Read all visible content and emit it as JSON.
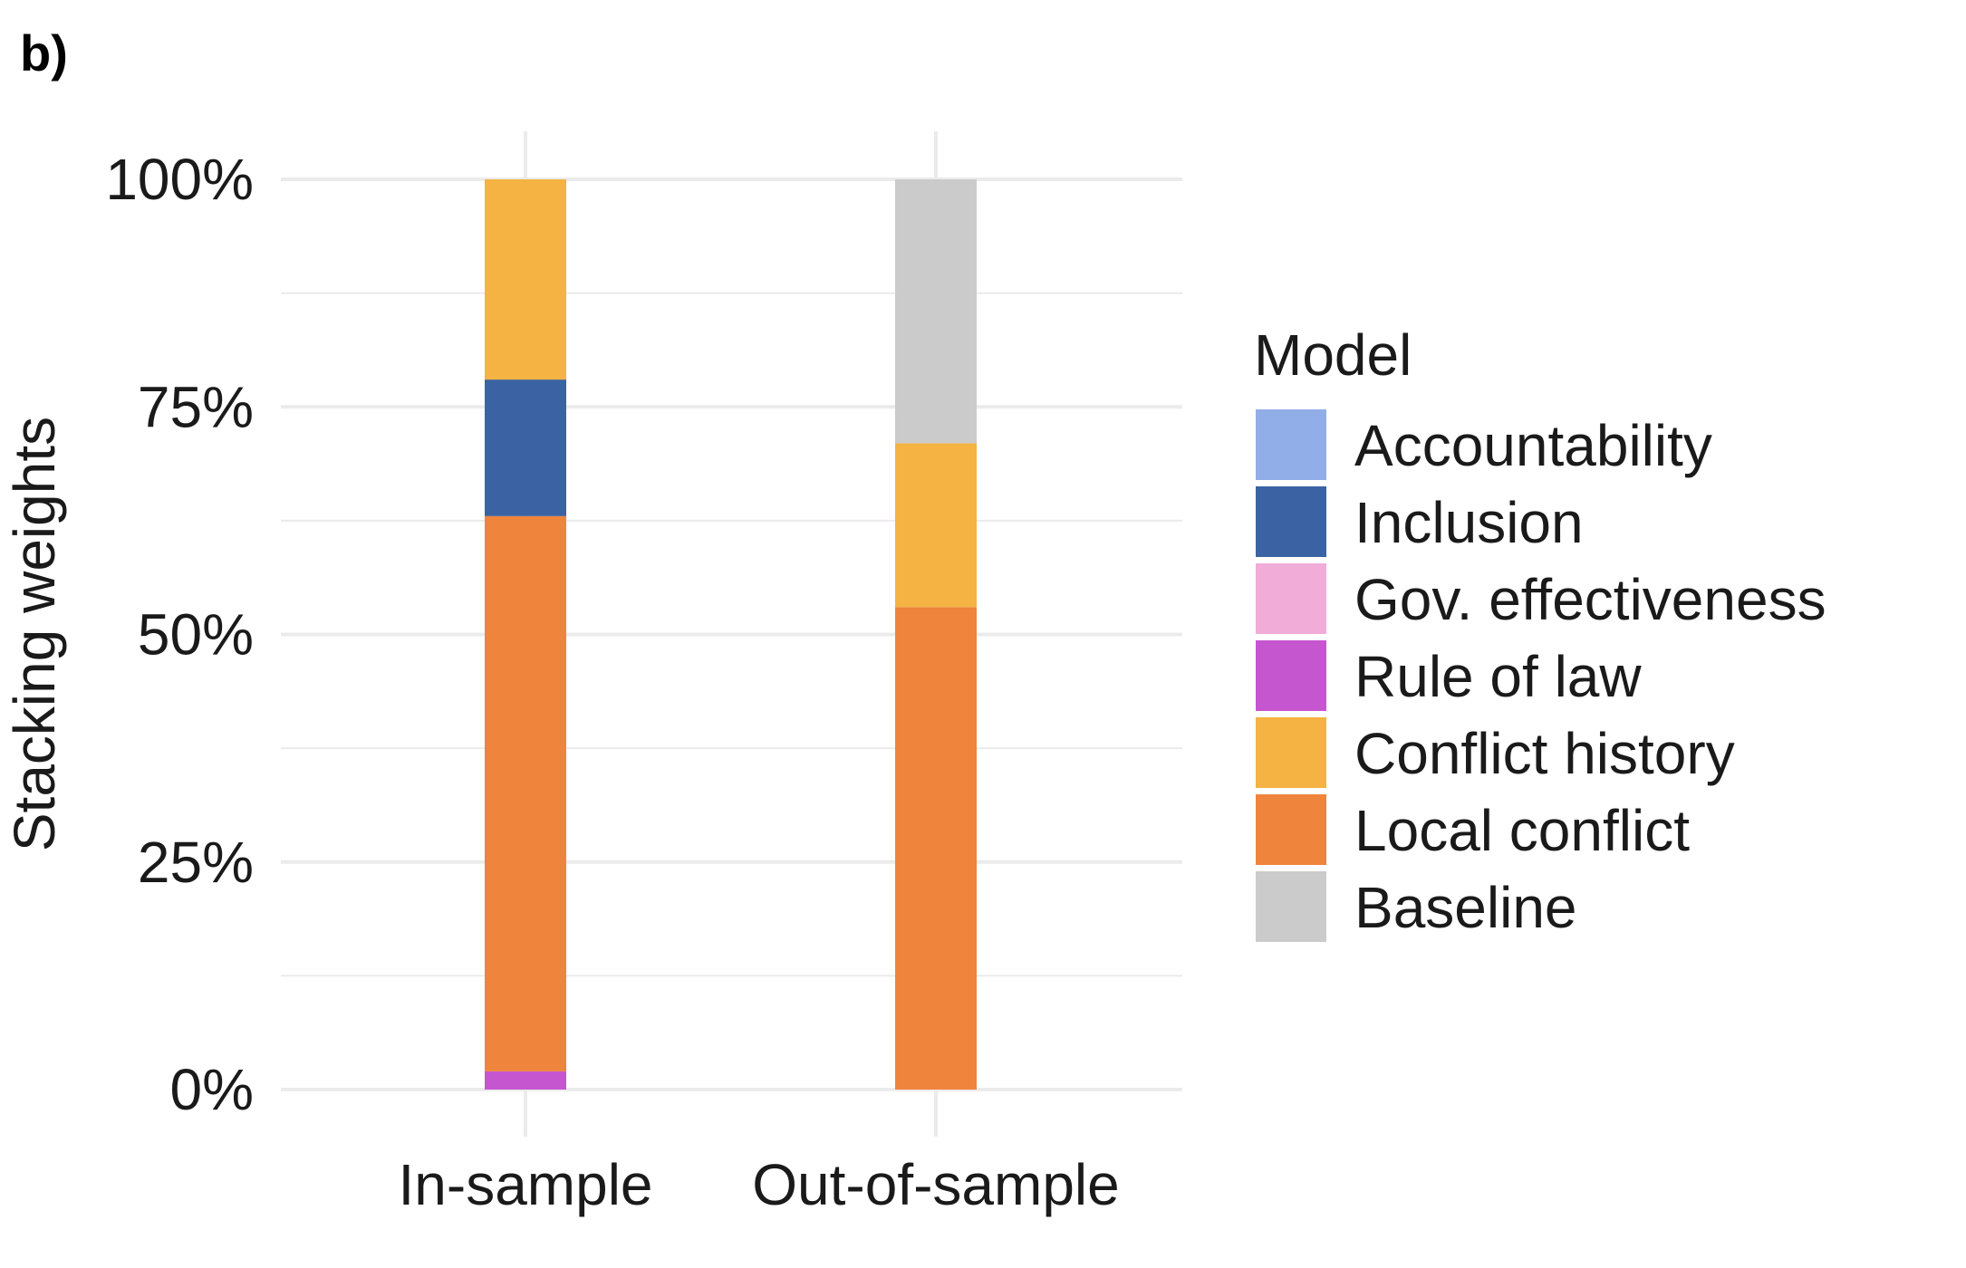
{
  "panel_label": "b)",
  "chart_data": {
    "type": "bar",
    "stacked": true,
    "categories": [
      "In-sample",
      "Out-of-sample"
    ],
    "ylabel": "Stacking weights",
    "xlabel": "",
    "ylim": [
      0,
      1
    ],
    "yticks": [
      0,
      0.25,
      0.5,
      0.75,
      1.0
    ],
    "ytick_labels": [
      "0%",
      "25%",
      "50%",
      "75%",
      "100%"
    ],
    "grid": true,
    "legend_title": "Model",
    "legend_position": "right",
    "series": [
      {
        "name": "Accountability",
        "color": "#92aee8",
        "values": [
          0.0,
          0.0
        ]
      },
      {
        "name": "Inclusion",
        "color": "#3b63a3",
        "values": [
          0.15,
          0.0
        ]
      },
      {
        "name": "Gov. effectiveness",
        "color": "#f2acd8",
        "values": [
          0.0,
          0.0
        ]
      },
      {
        "name": "Rule of law",
        "color": "#c656d0",
        "values": [
          0.02,
          0.0
        ]
      },
      {
        "name": "Conflict history",
        "color": "#f4b342",
        "values": [
          0.22,
          0.18
        ]
      },
      {
        "name": "Local conflict",
        "color": "#ef843c",
        "values": [
          0.61,
          0.53
        ]
      },
      {
        "name": "Baseline",
        "color": "#cbcbcb",
        "values": [
          0.0,
          0.29
        ]
      }
    ],
    "stack_order_bottom_to_top": [
      "Rule of law",
      "Local conflict",
      "Inclusion",
      "Conflict history",
      "Baseline"
    ]
  }
}
